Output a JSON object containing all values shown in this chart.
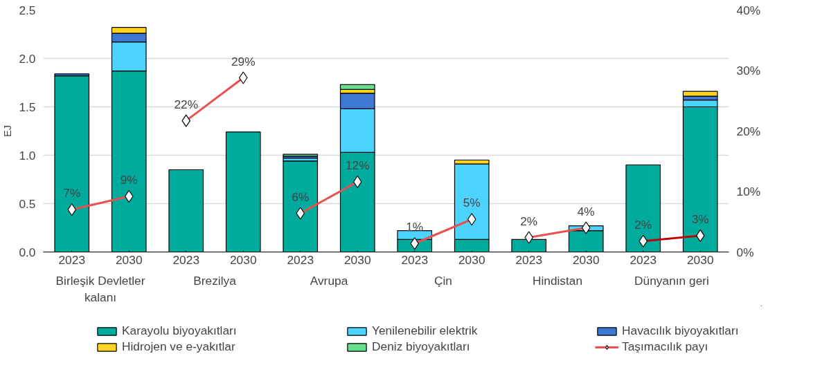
{
  "chart_data": {
    "type": "bar",
    "stacked": true,
    "ylabel": "EJ",
    "categories": [
      "2023",
      "2030",
      "2023",
      "2030",
      "2023",
      "2030",
      "2023",
      "2030",
      "2023",
      "2030",
      "2023",
      "2030"
    ],
    "annotations": [
      "Birleşik Devletler\nkalanı",
      "Brezilya",
      "Avrupa",
      "Çin",
      "Hindistan",
      "Dünyanın geri"
    ],
    "series": [
      {
        "name": "Karayolu biyoyakıtları",
        "color": "#00ab9e",
        "values": [
          1.82,
          1.87,
          0.85,
          1.24,
          0.94,
          1.03,
          0.13,
          0.13,
          0.13,
          0.22,
          0.9,
          1.5
        ]
      },
      {
        "name": "Yenilenebilir elektrik",
        "color": "#4dd3ff",
        "values": [
          0,
          0.3,
          0,
          0,
          0.03,
          0.45,
          0.09,
          0.78,
          0,
          0.05,
          0,
          0.07
        ]
      },
      {
        "name": "Havacılık biyoyakıtları",
        "color": "#3d78d2",
        "values": [
          0.02,
          0.09,
          0,
          0,
          0.02,
          0.16,
          0,
          0,
          0,
          0,
          0,
          0.04
        ]
      },
      {
        "name": "Hidrojen ve e-yakıtlar",
        "color": "#ffd422",
        "values": [
          0,
          0.06,
          0,
          0,
          0,
          0.04,
          0,
          0.04,
          0,
          0,
          0,
          0.05
        ]
      },
      {
        "name": "Deniz biyoyakıtları",
        "color": "#66e08c",
        "values": [
          0,
          0,
          0,
          0,
          0.02,
          0.05,
          0,
          0,
          0,
          0,
          0,
          0
        ]
      },
      {
        "name": "Taşımacılık payı",
        "type": "line",
        "axis": "y2",
        "color": "#e8514f",
        "marker": "diamond",
        "values": [
          7.0,
          9.2,
          null,
          null,
          null,
          null,
          null,
          null,
          null,
          null,
          null,
          null
        ],
        "value_labels": [
          "7%",
          "9%",
          null,
          null,
          null,
          null,
          null,
          null,
          null,
          null,
          null,
          null
        ]
      },
      {
        "type": "line",
        "axis": "y2",
        "color": "#e8514f",
        "marker": "diamond",
        "values": [
          null,
          null,
          21.7,
          28.8,
          null,
          null,
          null,
          null,
          null,
          null,
          null,
          null
        ],
        "value_labels": [
          null,
          null,
          "22%",
          "29%",
          null,
          null,
          null,
          null,
          null,
          null,
          null,
          null
        ]
      },
      {
        "type": "line",
        "axis": "y2",
        "color": "#e8514f",
        "marker": "diamond",
        "values": [
          null,
          null,
          null,
          null,
          6.4,
          11.6,
          null,
          null,
          null,
          null,
          null,
          null
        ],
        "value_labels": [
          null,
          null,
          null,
          null,
          "6%",
          "12%",
          null,
          null,
          null,
          null,
          null,
          null
        ]
      },
      {
        "type": "line",
        "axis": "y2",
        "color": "#e8514f",
        "marker": "diamond",
        "values": [
          null,
          null,
          null,
          null,
          null,
          null,
          1.4,
          5.4,
          null,
          null,
          null,
          null
        ],
        "value_labels": [
          null,
          null,
          null,
          null,
          null,
          null,
          "1%",
          "5%",
          null,
          null,
          null,
          null
        ]
      },
      {
        "type": "line",
        "axis": "y2",
        "color": "#e8514f",
        "marker": "diamond",
        "values": [
          null,
          null,
          null,
          null,
          null,
          null,
          null,
          null,
          2.4,
          4.0,
          null,
          null
        ],
        "value_labels": [
          null,
          null,
          null,
          null,
          null,
          null,
          null,
          null,
          "2%",
          "4%",
          null,
          null
        ]
      },
      {
        "type": "line",
        "axis": "y2",
        "color": "#c00000",
        "marker": "diamond",
        "values": [
          null,
          null,
          null,
          null,
          null,
          null,
          null,
          null,
          null,
          null,
          1.8,
          2.7
        ],
        "value_labels": [
          null,
          null,
          null,
          null,
          null,
          null,
          null,
          null,
          null,
          null,
          "2%",
          "3%"
        ]
      }
    ],
    "ylim": [
      0,
      2.5
    ],
    "yticks": [
      {
        "value": 0,
        "label": "0.0"
      },
      {
        "value": 0.5,
        "label": "0.5"
      },
      {
        "value": 1,
        "label": "1.0"
      },
      {
        "value": 1.5,
        "label": "1.5"
      },
      {
        "value": 2,
        "label": "2.0"
      },
      {
        "value": 2.5,
        "label": "2.5"
      }
    ],
    "y2lim": [
      0,
      40
    ],
    "y2ticks": [
      {
        "value": 0,
        "label": "0%"
      },
      {
        "value": 10,
        "label": "10%"
      },
      {
        "value": 20,
        "label": "20%"
      },
      {
        "value": 30,
        "label": "30%"
      },
      {
        "value": 40,
        "label": "40%"
      }
    ],
    "grid": "y",
    "legend": "bottom"
  }
}
